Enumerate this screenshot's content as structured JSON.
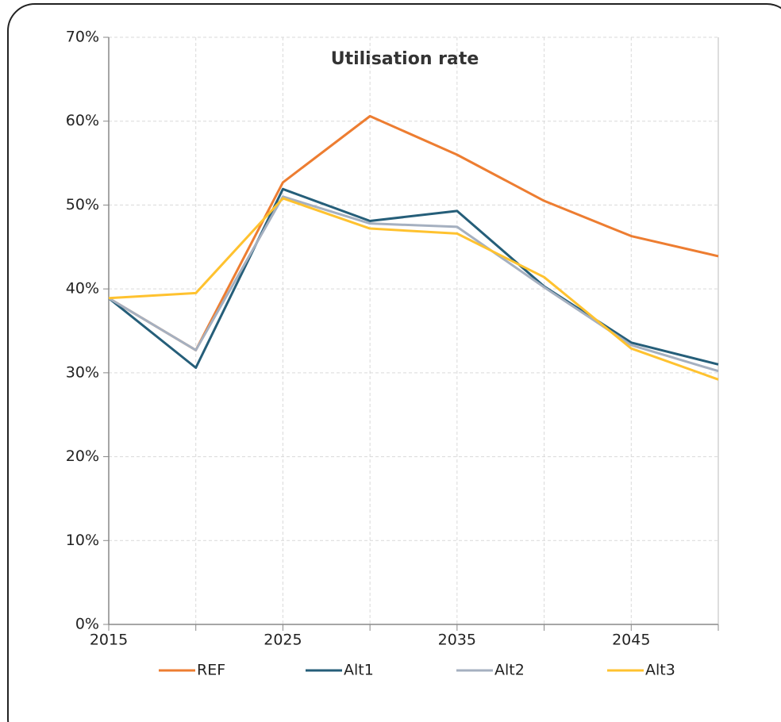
{
  "chart_data": {
    "type": "line",
    "title": "Utilisation rate",
    "x": [
      2015,
      2020,
      2025,
      2030,
      2035,
      2040,
      2045,
      2050
    ],
    "xlim": [
      2015,
      2050
    ],
    "xticks": [
      2015,
      2025,
      2035,
      2045
    ],
    "xminorticks": [
      2020,
      2030,
      2040,
      2050
    ],
    "ylim": [
      0,
      70
    ],
    "yticks": [
      {
        "value": 0,
        "label": "0%"
      },
      {
        "value": 10,
        "label": "10%"
      },
      {
        "value": 20,
        "label": "20%"
      },
      {
        "value": 30,
        "label": "30%"
      },
      {
        "value": 40,
        "label": "40%"
      },
      {
        "value": 50,
        "label": "50%"
      },
      {
        "value": 60,
        "label": "60%"
      },
      {
        "value": 70,
        "label": "70%"
      }
    ],
    "grid": true,
    "legend": "bottom",
    "series": [
      {
        "name": "REF",
        "color": "#ed7d31",
        "values": [
          38.9,
          32.7,
          52.7,
          60.6,
          56.0,
          50.5,
          46.3,
          43.9
        ]
      },
      {
        "name": "Alt1",
        "color": "#255e79",
        "values": [
          38.9,
          30.6,
          51.9,
          48.1,
          49.3,
          40.3,
          33.6,
          31.0
        ]
      },
      {
        "name": "Alt2",
        "color": "#a5b0c0",
        "values": [
          38.9,
          32.7,
          51.0,
          47.8,
          47.4,
          40.2,
          33.3,
          30.2
        ]
      },
      {
        "name": "Alt3",
        "color": "#ffc22f",
        "values": [
          38.9,
          39.5,
          50.8,
          47.2,
          46.6,
          41.4,
          32.9,
          29.2
        ]
      }
    ]
  }
}
